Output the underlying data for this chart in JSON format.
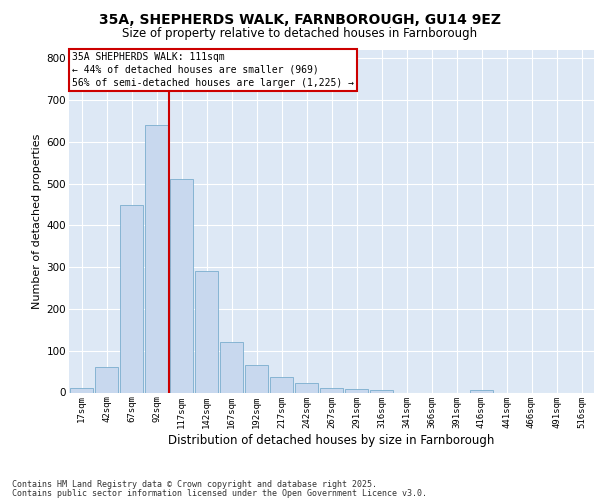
{
  "title_line1": "35A, SHEPHERDS WALK, FARNBOROUGH, GU14 9EZ",
  "title_line2": "Size of property relative to detached houses in Farnborough",
  "xlabel": "Distribution of detached houses by size in Farnborough",
  "ylabel": "Number of detached properties",
  "categories": [
    "17sqm",
    "42sqm",
    "67sqm",
    "92sqm",
    "117sqm",
    "142sqm",
    "167sqm",
    "192sqm",
    "217sqm",
    "242sqm",
    "267sqm",
    "291sqm",
    "316sqm",
    "341sqm",
    "366sqm",
    "391sqm",
    "416sqm",
    "441sqm",
    "466sqm",
    "491sqm",
    "516sqm"
  ],
  "values": [
    10,
    60,
    450,
    640,
    510,
    290,
    120,
    65,
    38,
    22,
    10,
    8,
    6,
    0,
    0,
    0,
    5,
    0,
    0,
    0,
    0
  ],
  "bar_color": "#c8d8ee",
  "bar_edge_color": "#7aadce",
  "property_label": "35A SHEPHERDS WALK: 111sqm",
  "annotation_line1": "← 44% of detached houses are smaller (969)",
  "annotation_line2": "56% of semi-detached houses are larger (1,225) →",
  "vline_color": "#cc0000",
  "annotation_box_color": "#ffffff",
  "annotation_box_edge": "#cc0000",
  "ylim": [
    0,
    820
  ],
  "yticks": [
    0,
    100,
    200,
    300,
    400,
    500,
    600,
    700,
    800
  ],
  "plot_bg_color": "#dde8f5",
  "fig_bg_color": "#ffffff",
  "grid_color": "#ffffff",
  "footer_line1": "Contains HM Land Registry data © Crown copyright and database right 2025.",
  "footer_line2": "Contains public sector information licensed under the Open Government Licence v3.0."
}
